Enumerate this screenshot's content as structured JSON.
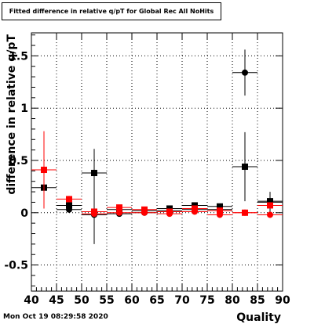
{
  "title": "Fitted difference in relative q/pT  for Global Rec All NoHits",
  "timestamp": "Mon Oct 19 08:29:58 2020",
  "colors": {
    "series_a": "#000000",
    "series_b": "#ff0000",
    "grid": "#000000"
  },
  "chart_data": {
    "type": "scatter",
    "xlabel": "Quality",
    "ylabel": "difference in relative q/pT",
    "xlim": [
      40,
      90
    ],
    "ylim": [
      -0.75,
      1.72
    ],
    "xticks": [
      "40",
      "45",
      "50",
      "55",
      "60",
      "65",
      "70",
      "75",
      "80",
      "85",
      "90"
    ],
    "yticks": [
      "-0.5",
      "0",
      "0.5",
      "1",
      "1.5"
    ],
    "grid": true,
    "bin_half_width": 2.5,
    "series": [
      {
        "color": "#000000",
        "marker": "square",
        "x": [
          42.5,
          47.5,
          52.5,
          57.5,
          62.5,
          67.5,
          72.5,
          77.5,
          82.5,
          87.5
        ],
        "y": [
          0.24,
          0.07,
          0.38,
          0.03,
          0.02,
          0.04,
          0.07,
          0.06,
          0.44,
          0.11
        ],
        "yerr": [
          0.0,
          0.04,
          0.23,
          0.02,
          0.02,
          0.02,
          0.02,
          0.02,
          0.33,
          0.03
        ]
      },
      {
        "color": "#000000",
        "marker": "circle",
        "x": [
          47.5,
          52.5,
          57.5,
          62.5,
          67.5,
          72.5,
          77.5,
          82.5,
          87.5
        ],
        "y": [
          0.03,
          -0.02,
          -0.01,
          0.0,
          0.02,
          0.03,
          0.03,
          1.34,
          0.1
        ],
        "yerr": [
          0.03,
          0.28,
          0.02,
          0.02,
          0.02,
          0.02,
          0.02,
          0.22,
          0.1
        ]
      },
      {
        "color": "#ff0000",
        "marker": "square",
        "x": [
          42.5,
          47.5,
          52.5,
          57.5,
          62.5,
          67.5,
          72.5,
          77.5,
          82.5,
          87.5
        ],
        "y": [
          0.41,
          0.13,
          0.01,
          0.05,
          0.03,
          0.01,
          0.04,
          0.02,
          0.0,
          0.07
        ],
        "yerr": [
          0.37,
          0.03,
          0.03,
          0.02,
          0.02,
          0.02,
          0.02,
          0.02,
          0.02,
          0.03
        ]
      },
      {
        "color": "#ff0000",
        "marker": "circle",
        "x": [
          52.5,
          57.5,
          62.5,
          67.5,
          72.5,
          77.5,
          82.5,
          87.5
        ],
        "y": [
          -0.01,
          0.0,
          0.0,
          -0.01,
          0.01,
          -0.02,
          0.0,
          -0.02
        ],
        "yerr": [
          0.02,
          0.02,
          0.02,
          0.02,
          0.02,
          0.02,
          0.02,
          0.02
        ]
      }
    ]
  }
}
